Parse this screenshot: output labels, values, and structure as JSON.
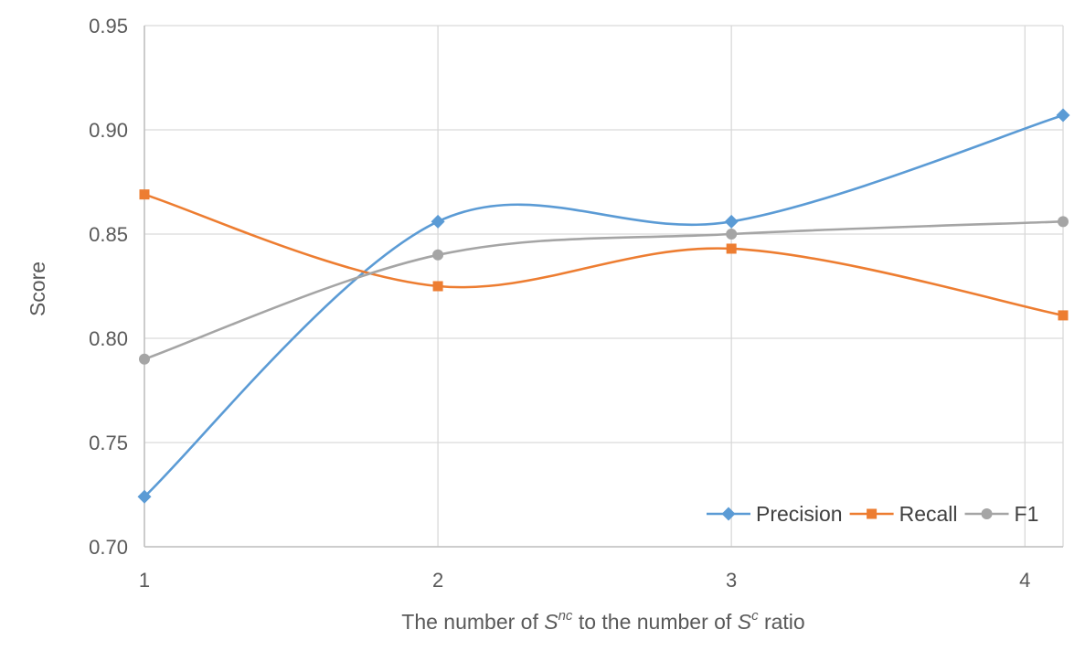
{
  "chart_data": {
    "type": "line",
    "smooth": true,
    "x": [
      1,
      2,
      3,
      4.13
    ],
    "xticks": [
      "1",
      "2",
      "3",
      "4"
    ],
    "xlim": [
      1,
      4.13
    ],
    "ylim": [
      0.7,
      0.95
    ],
    "yticks": [
      "0.70",
      "0.75",
      "0.80",
      "0.85",
      "0.90",
      "0.95"
    ],
    "ylabel": "Score",
    "xlabel": {
      "prefix": "The number of ",
      "s1": "S",
      "sup1": "nc",
      "middle": " to the number of ",
      "s2": "S",
      "sup2": "c",
      "suffix": " ratio"
    },
    "grid": true,
    "legend_position": "bottom-right",
    "series": [
      {
        "name": "Precision",
        "marker": "diamond",
        "color": "#5B9BD5",
        "values": [
          0.724,
          0.856,
          0.856,
          0.907
        ]
      },
      {
        "name": "Recall",
        "marker": "square",
        "color": "#ED7D31",
        "values": [
          0.869,
          0.825,
          0.843,
          0.811
        ]
      },
      {
        "name": "F1",
        "marker": "circle",
        "color": "#A5A5A5",
        "values": [
          0.79,
          0.84,
          0.85,
          0.856
        ]
      }
    ]
  }
}
